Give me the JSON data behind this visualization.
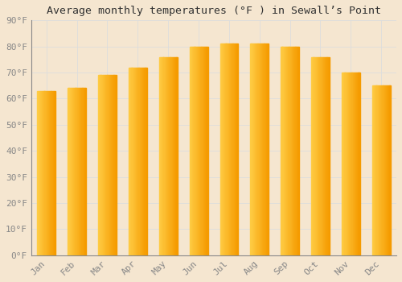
{
  "title": "Average monthly temperatures (°F ) in Sewall’s Point",
  "months": [
    "Jan",
    "Feb",
    "Mar",
    "Apr",
    "May",
    "Jun",
    "Jul",
    "Aug",
    "Sep",
    "Oct",
    "Nov",
    "Dec"
  ],
  "values": [
    63,
    64,
    69,
    72,
    76,
    80,
    81,
    81,
    80,
    76,
    70,
    65
  ],
  "bar_color_light": "#FFCC44",
  "bar_color_dark": "#F59B00",
  "background_color": "#F5E6D0",
  "ylim": [
    0,
    90
  ],
  "yticks": [
    0,
    10,
    20,
    30,
    40,
    50,
    60,
    70,
    80,
    90
  ],
  "ytick_labels": [
    "0°F",
    "10°F",
    "20°F",
    "30°F",
    "40°F",
    "50°F",
    "60°F",
    "70°F",
    "80°F",
    "90°F"
  ],
  "grid_color": "#dddddd",
  "title_fontsize": 9.5,
  "tick_fontsize": 8,
  "font_family": "monospace",
  "tick_color": "#888888",
  "bar_width": 0.6
}
